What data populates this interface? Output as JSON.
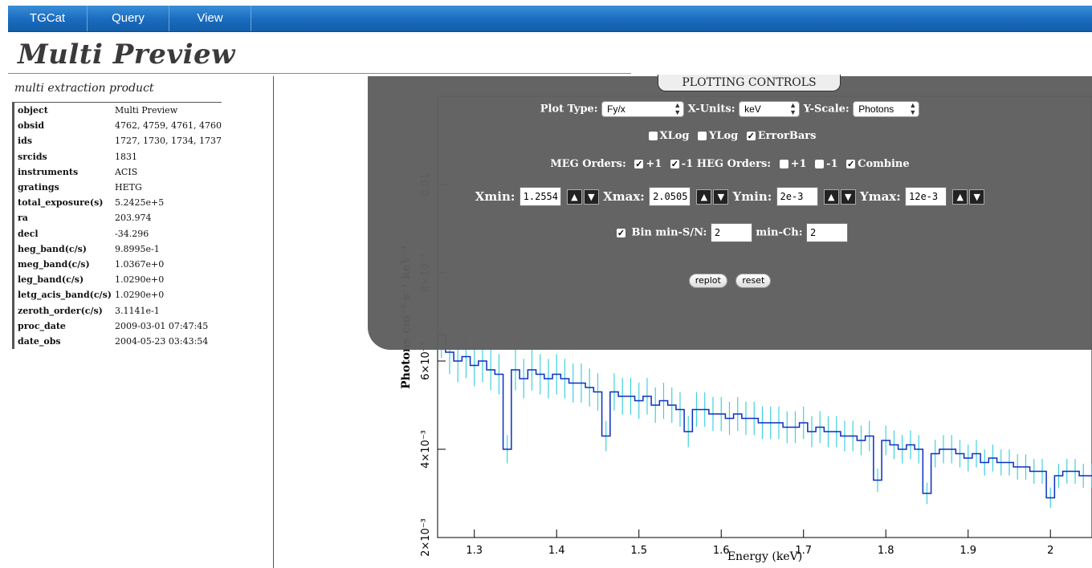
{
  "nav": {
    "items": [
      "TGCat",
      "Query",
      "View"
    ]
  },
  "page_title": "Multi Preview",
  "subtitle": "multi extraction product",
  "info_rows": [
    {
      "key": "object",
      "value": "Multi Preview"
    },
    {
      "key": "obsid",
      "value": "4762, 4759, 4761, 4760"
    },
    {
      "key": "ids",
      "value": "1727, 1730, 1734, 1737"
    },
    {
      "key": "srcids",
      "value": "1831"
    },
    {
      "key": "instruments",
      "value": "ACIS"
    },
    {
      "key": "gratings",
      "value": "HETG"
    },
    {
      "key": "total_exposure(s)",
      "value": "5.2425e+5"
    },
    {
      "key": "ra",
      "value": "203.974"
    },
    {
      "key": "decl",
      "value": "-34.296"
    },
    {
      "key": "heg_band(c/s)",
      "value": "9.8995e-1"
    },
    {
      "key": "meg_band(c/s)",
      "value": "1.0367e+0"
    },
    {
      "key": "leg_band(c/s)",
      "value": "1.0290e+0"
    },
    {
      "key": "letg_acis_band(c/s)",
      "value": "1.0290e+0"
    },
    {
      "key": "zeroth_order(c/s)",
      "value": "3.1141e-1"
    },
    {
      "key": "proc_date",
      "value": "2009-03-01 07:47:45"
    },
    {
      "key": "date_obs",
      "value": "2004-05-23 03:43:54"
    }
  ],
  "controls": {
    "tab_label": "PLOTTING CONTROLS",
    "plot_type_label": "Plot Type:",
    "plot_type_value": "Fy/x",
    "x_units_label": "X-Units:",
    "x_units_value": "keV",
    "y_scale_label": "Y-Scale:",
    "y_scale_value": "Photons",
    "xlog_label": "XLog",
    "xlog_checked": false,
    "ylog_label": "YLog",
    "ylog_checked": false,
    "errorbars_label": "ErrorBars",
    "errorbars_checked": true,
    "meg_orders_label": "MEG Orders:",
    "meg_plus1_label": "+1",
    "meg_minus1_label": "-1",
    "heg_orders_label": "HEG Orders:",
    "heg_plus1_label": "+1",
    "heg_minus1_label": "-1",
    "combine_label": "Combine",
    "xmin_label": "Xmin:",
    "xmin_value": "1.2554",
    "xmax_label": "Xmax:",
    "xmax_value": "2.0505",
    "ymin_label": "Ymin:",
    "ymin_value": "2e-3",
    "ymax_label": "Ymax:",
    "ymax_value": "12e-3",
    "bin_label": "Bin min-S/N:",
    "bin_value": "2",
    "minch_label": "min-Ch:",
    "minch_value": "2",
    "replot_label": "replot",
    "reset_label": "reset"
  },
  "chart_data": {
    "type": "line",
    "xlabel": "Energy (keV)",
    "ylabel": "Photons cm⁻² s⁻¹ keV⁻¹",
    "xlim": [
      1.2554,
      2.0505
    ],
    "ylim": [
      0.002,
      0.012
    ],
    "x_ticks": [
      1.3,
      1.4,
      1.5,
      1.6,
      1.7,
      1.8,
      1.9,
      2.0
    ],
    "x_tick_labels": [
      "1.3",
      "1.4",
      "1.5",
      "1.6",
      "1.7",
      "1.8",
      "1.9",
      "2"
    ],
    "y_ticks": [
      0.002,
      0.004,
      0.006,
      0.008,
      0.01
    ],
    "y_tick_labels": [
      "2×10⁻³",
      "4×10⁻³",
      "6×10⁻³",
      "8×10⁻³",
      "0.01"
    ],
    "line_color": "#0a2fbf",
    "errorbar_color": "#3fd0e0",
    "series": [
      {
        "x": [
          1.26,
          1.27,
          1.28,
          1.29,
          1.3,
          1.31,
          1.32,
          1.33,
          1.34,
          1.35,
          1.36,
          1.37,
          1.38,
          1.39,
          1.4,
          1.41,
          1.42,
          1.43,
          1.44,
          1.45,
          1.46,
          1.47,
          1.48,
          1.49,
          1.5,
          1.51,
          1.52,
          1.53,
          1.54,
          1.55,
          1.56,
          1.57,
          1.58,
          1.59,
          1.6,
          1.61,
          1.62,
          1.63,
          1.64,
          1.65,
          1.66,
          1.67,
          1.68,
          1.69,
          1.7,
          1.71,
          1.72,
          1.73,
          1.74,
          1.75,
          1.76,
          1.77,
          1.78,
          1.79,
          1.8,
          1.81,
          1.82,
          1.83,
          1.84,
          1.85,
          1.86,
          1.87,
          1.88,
          1.89,
          1.9,
          1.91,
          1.92,
          1.93,
          1.94,
          1.95,
          1.96,
          1.97,
          1.98,
          1.99,
          2.0,
          2.01,
          2.02,
          2.03,
          2.04,
          2.05
        ],
        "y": [
          0.0066,
          0.0062,
          0.006,
          0.0061,
          0.0059,
          0.006,
          0.0058,
          0.0057,
          0.004,
          0.0058,
          0.0056,
          0.0058,
          0.0057,
          0.0056,
          0.0057,
          0.0056,
          0.0055,
          0.0055,
          0.0054,
          0.0053,
          0.0043,
          0.0053,
          0.0052,
          0.0052,
          0.0051,
          0.0052,
          0.005,
          0.0051,
          0.005,
          0.0049,
          0.0044,
          0.0049,
          0.0049,
          0.0048,
          0.0048,
          0.0047,
          0.0048,
          0.0047,
          0.0047,
          0.0046,
          0.0046,
          0.0046,
          0.0045,
          0.0045,
          0.0046,
          0.0044,
          0.0045,
          0.0044,
          0.0044,
          0.0043,
          0.0043,
          0.0042,
          0.0043,
          0.0033,
          0.0042,
          0.0041,
          0.004,
          0.0041,
          0.004,
          0.003,
          0.0039,
          0.004,
          0.004,
          0.0039,
          0.0038,
          0.0039,
          0.0037,
          0.0038,
          0.0037,
          0.0037,
          0.0036,
          0.0036,
          0.0035,
          0.0035,
          0.0029,
          0.0034,
          0.0035,
          0.0035,
          0.0034,
          0.0034
        ]
      }
    ]
  }
}
